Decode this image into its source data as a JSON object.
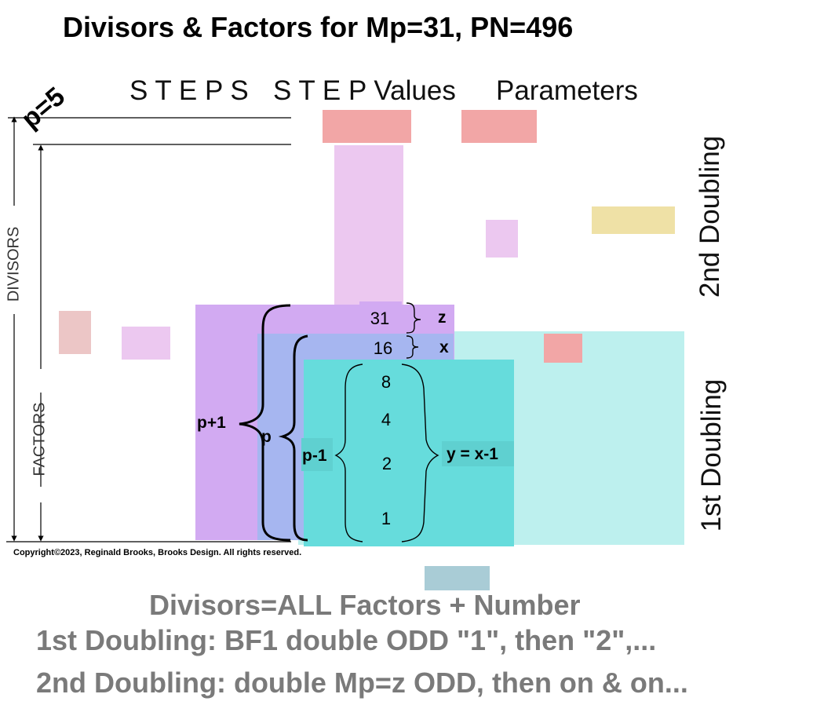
{
  "title": "Divisors & Factors for Mp=31, PN=496",
  "p_label": "p=5",
  "headers": {
    "steps": "S T E P S",
    "step_values": "S T E P Values",
    "parameters": "Parameters"
  },
  "side_labels": {
    "divisors": "DIVISORS",
    "factors": "FACTORS",
    "second_doubling": "2nd Doubling",
    "first_doubling": "1st Doubling"
  },
  "values": [
    "31",
    "16",
    "8",
    "4",
    "2",
    "1"
  ],
  "brace_labels": {
    "z": "z",
    "x": "x",
    "p_plus_1": "p+1",
    "p": "p",
    "p_minus_1": "p-1",
    "y_eq": "y = x-1"
  },
  "copyright": "Copyright©2023, Reginald Brooks, Brooks Design. All rights reserved.",
  "notes": [
    "Divisors=ALL Factors + Number",
    "1st Doubling: BF1 double ODD \"1\", then \"2\",...",
    "2nd Doubling: double Mp=z ODD, then on & on..."
  ],
  "colors": {
    "salmon": "#f2a6a6",
    "lavender": "#ecc8f0",
    "purple": "#d2aaf2",
    "blue": "#a6b6f0",
    "teal": "#66dcdc",
    "light_teal": "#bdf0ee",
    "yellow": "#efe1a6",
    "pink_brown": "#ecc6c6",
    "steel_blue": "#a9ccd6"
  }
}
